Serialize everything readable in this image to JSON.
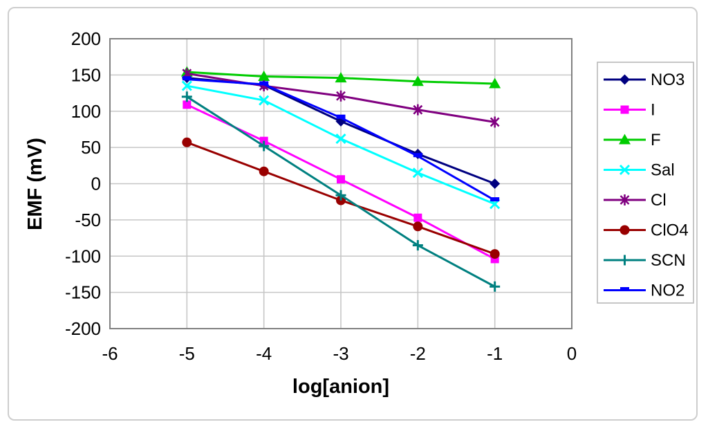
{
  "chart_data": {
    "type": "line",
    "title": "",
    "xlabel": "log[anion]",
    "ylabel": "EMF (mV)",
    "x": [
      -5,
      -4,
      -3,
      -2,
      -1
    ],
    "xlim": [
      -6,
      0
    ],
    "ylim": [
      -200,
      200
    ],
    "xticks": [
      -6,
      -5,
      -4,
      -3,
      -2,
      -1,
      0
    ],
    "yticks": [
      200,
      150,
      100,
      50,
      0,
      -50,
      -100,
      -150,
      -200
    ],
    "grid": true,
    "legend_position": "right",
    "series": [
      {
        "name": "NO3",
        "color": "#000080",
        "marker": "diamond",
        "values": [
          146,
          136,
          86,
          41,
          0
        ]
      },
      {
        "name": "I",
        "color": "#FF00FF",
        "marker": "square",
        "values": [
          109,
          59,
          6,
          -47,
          -104
        ]
      },
      {
        "name": "F",
        "color": "#00CC00",
        "marker": "triangle",
        "values": [
          154,
          148,
          146,
          141,
          138
        ]
      },
      {
        "name": "Sal",
        "color": "#00FFFF",
        "marker": "x",
        "values": [
          135,
          115,
          62,
          15,
          -28
        ]
      },
      {
        "name": "Cl",
        "color": "#800080",
        "marker": "asterisk",
        "values": [
          152,
          135,
          121,
          102,
          85
        ]
      },
      {
        "name": "ClO4",
        "color": "#990000",
        "marker": "circle",
        "values": [
          57,
          17,
          -23,
          -59,
          -97
        ]
      },
      {
        "name": "SCN",
        "color": "#008080",
        "marker": "plus",
        "values": [
          120,
          52,
          -16,
          -85,
          -142
        ]
      },
      {
        "name": "NO2",
        "color": "#0000FF",
        "marker": "dash",
        "values": [
          144,
          137,
          91,
          38,
          -23
        ]
      }
    ]
  },
  "style_colors": {
    "plot_border": "#808080",
    "gridline": "#c6c6c6",
    "legend_border": "#b8b8b8",
    "outer_border": "#cdcdcd"
  }
}
